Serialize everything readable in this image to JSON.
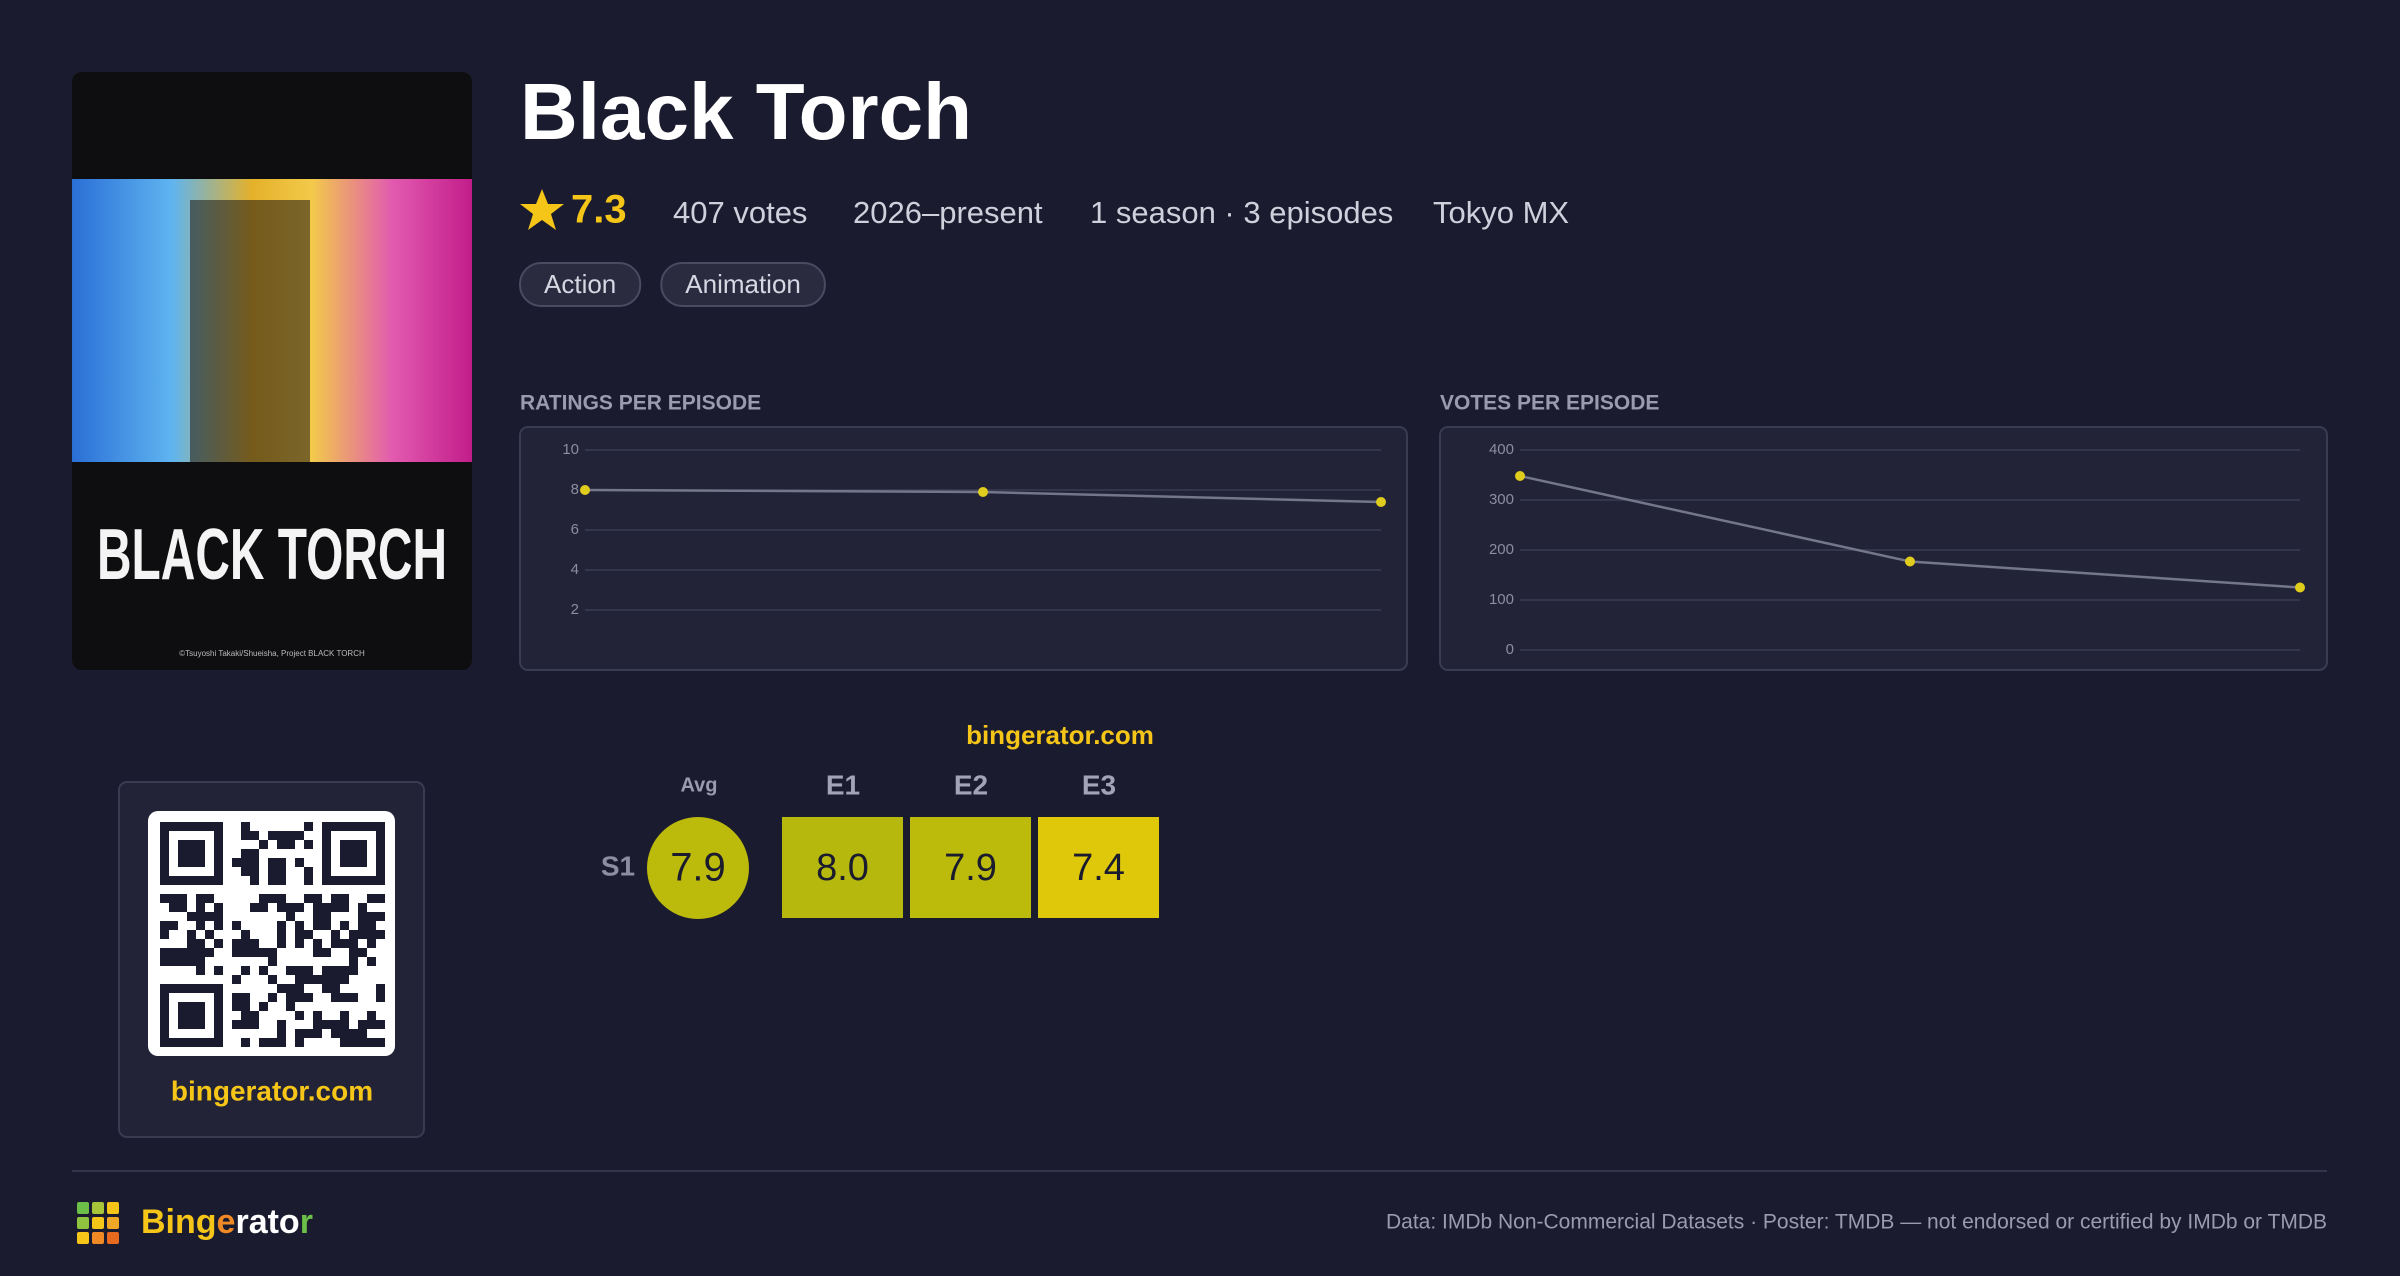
{
  "title": "Black Torch",
  "meta": {
    "rating": "7.3",
    "votes": "407 votes",
    "years": "2026–present",
    "seasons": "1 season · 3 episodes",
    "network": "Tokyo MX"
  },
  "genres": [
    "Action",
    "Animation"
  ],
  "poster": {
    "title": "BLACK TORCH",
    "credit": "©Tsuyoshi Takaki/Shueisha, Project BLACK TORCH"
  },
  "chart_data": [
    {
      "type": "line",
      "title": "RATINGS PER EPISODE",
      "categories": [
        null,
        null,
        null
      ],
      "series": [
        {
          "values": [
            8.0,
            7.9,
            7.4
          ],
          "color": "#e0cc1c"
        }
      ],
      "ylim": [
        0,
        10
      ],
      "yticks": [
        2,
        4,
        6,
        8,
        10
      ],
      "grid": true
    },
    {
      "type": "line",
      "title": "VOTES PER EPISODE",
      "categories": [
        null,
        null,
        null
      ],
      "series": [
        {
          "values": [
            348,
            177,
            125
          ],
          "color": "#e0cc1c"
        }
      ],
      "ylim": [
        0,
        400
      ],
      "yticks": [
        0,
        100,
        200,
        300,
        400
      ],
      "grid": true
    }
  ],
  "heatmap": {
    "brand": "bingerator.com",
    "avg_label": "Avg",
    "episodes": [
      "E1",
      "E2",
      "E3"
    ],
    "rows": [
      {
        "season": "S1",
        "avg": "7.9",
        "cells": [
          "8.0",
          "7.9",
          "7.4"
        ]
      }
    ]
  },
  "qr": {
    "label": "bingerator.com"
  },
  "footer": {
    "brand": [
      "Bing",
      "e",
      "rato",
      "r"
    ],
    "credit": "Data: IMDb Non-Commercial Datasets · Poster: TMDB — not endorsed or certified by IMDb or TMDB"
  }
}
